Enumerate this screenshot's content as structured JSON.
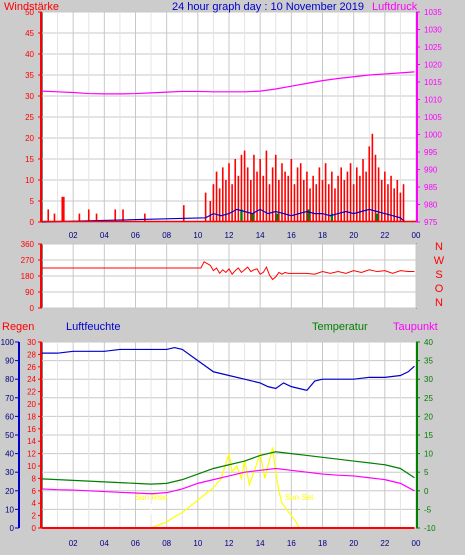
{
  "colors": {
    "background": "#cccccc",
    "plot_bg": "#ffffff",
    "grid": "#c8c8c8",
    "wind": "#ff0000",
    "gust_low": "#0000cc",
    "gust_green": "#008000",
    "pressure": "#ff00ff",
    "direction": "#ff0000",
    "rain": "#ff0000",
    "humidity": "#0000cc",
    "temperature": "#008000",
    "dewpoint": "#ff00ff",
    "sun": "#ffff00"
  },
  "chart_data": [
    {
      "type": "bar",
      "title": "24 hour graph day : 10 November 2019",
      "ylabel_left": "Windstärke",
      "ylabel_right": "Luftdruck",
      "xticks": [
        "02",
        "04",
        "06",
        "08",
        "10",
        "12",
        "14",
        "16",
        "18",
        "20",
        "22",
        "00"
      ],
      "x_range": [
        0,
        24
      ],
      "ylim_left": [
        0,
        50
      ],
      "yticks_left": [
        0,
        5,
        10,
        15,
        20,
        25,
        30,
        35,
        40,
        45,
        50
      ],
      "ylim_right": [
        975,
        1035
      ],
      "yticks_right": [
        975,
        980,
        985,
        990,
        995,
        1000,
        1005,
        1010,
        1015,
        1020,
        1025,
        1030,
        1035
      ],
      "wind_bars": [
        {
          "t": 0.4,
          "v": 3
        },
        {
          "t": 0.8,
          "v": 2
        },
        {
          "t": 1.3,
          "v": 6
        },
        {
          "t": 1.4,
          "v": 6
        },
        {
          "t": 2.4,
          "v": 2
        },
        {
          "t": 3.0,
          "v": 3
        },
        {
          "t": 3.5,
          "v": 2
        },
        {
          "t": 4.7,
          "v": 3
        },
        {
          "t": 5.2,
          "v": 3
        },
        {
          "t": 6.6,
          "v": 2
        },
        {
          "t": 9.1,
          "v": 4
        },
        {
          "t": 10.5,
          "v": 7
        },
        {
          "t": 10.8,
          "v": 5
        },
        {
          "t": 11.0,
          "v": 9
        },
        {
          "t": 11.2,
          "v": 12
        },
        {
          "t": 11.4,
          "v": 8
        },
        {
          "t": 11.6,
          "v": 13
        },
        {
          "t": 11.8,
          "v": 10
        },
        {
          "t": 12.0,
          "v": 14
        },
        {
          "t": 12.2,
          "v": 9
        },
        {
          "t": 12.4,
          "v": 15
        },
        {
          "t": 12.6,
          "v": 11
        },
        {
          "t": 12.8,
          "v": 16
        },
        {
          "t": 13.0,
          "v": 17
        },
        {
          "t": 13.2,
          "v": 13
        },
        {
          "t": 13.4,
          "v": 10
        },
        {
          "t": 13.6,
          "v": 16
        },
        {
          "t": 13.8,
          "v": 12
        },
        {
          "t": 14.0,
          "v": 15
        },
        {
          "t": 14.2,
          "v": 11
        },
        {
          "t": 14.4,
          "v": 17
        },
        {
          "t": 14.6,
          "v": 9
        },
        {
          "t": 14.8,
          "v": 13
        },
        {
          "t": 15.0,
          "v": 16
        },
        {
          "t": 15.2,
          "v": 10
        },
        {
          "t": 15.4,
          "v": 14
        },
        {
          "t": 15.6,
          "v": 12
        },
        {
          "t": 15.8,
          "v": 11
        },
        {
          "t": 16.0,
          "v": 15
        },
        {
          "t": 16.2,
          "v": 9
        },
        {
          "t": 16.4,
          "v": 13
        },
        {
          "t": 16.6,
          "v": 14
        },
        {
          "t": 16.8,
          "v": 10
        },
        {
          "t": 17.0,
          "v": 12
        },
        {
          "t": 17.2,
          "v": 8
        },
        {
          "t": 17.4,
          "v": 11
        },
        {
          "t": 17.6,
          "v": 9
        },
        {
          "t": 17.8,
          "v": 13
        },
        {
          "t": 18.0,
          "v": 10
        },
        {
          "t": 18.2,
          "v": 14
        },
        {
          "t": 18.4,
          "v": 9
        },
        {
          "t": 18.6,
          "v": 12
        },
        {
          "t": 18.8,
          "v": 8
        },
        {
          "t": 19.0,
          "v": 11
        },
        {
          "t": 19.2,
          "v": 13
        },
        {
          "t": 19.4,
          "v": 10
        },
        {
          "t": 19.6,
          "v": 12
        },
        {
          "t": 19.8,
          "v": 14
        },
        {
          "t": 20.0,
          "v": 9
        },
        {
          "t": 20.2,
          "v": 13
        },
        {
          "t": 20.4,
          "v": 11
        },
        {
          "t": 20.6,
          "v": 15
        },
        {
          "t": 20.8,
          "v": 12
        },
        {
          "t": 21.0,
          "v": 18
        },
        {
          "t": 21.2,
          "v": 21
        },
        {
          "t": 21.4,
          "v": 16
        },
        {
          "t": 21.6,
          "v": 13
        },
        {
          "t": 21.8,
          "v": 10
        },
        {
          "t": 22.0,
          "v": 12
        },
        {
          "t": 22.2,
          "v": 9
        },
        {
          "t": 22.4,
          "v": 11
        },
        {
          "t": 22.6,
          "v": 8
        },
        {
          "t": 22.8,
          "v": 10
        },
        {
          "t": 23.0,
          "v": 7
        },
        {
          "t": 23.2,
          "v": 9
        }
      ],
      "gust_series": {
        "t": [
          0,
          10.5,
          11,
          11.5,
          12,
          12.5,
          13,
          13.5,
          14,
          14.5,
          15,
          15.5,
          16,
          16.5,
          17,
          17.5,
          18,
          18.5,
          19,
          19.5,
          20,
          20.5,
          21,
          21.5,
          22,
          22.5,
          23,
          23.3
        ],
        "v": [
          0,
          1,
          2,
          1.5,
          2,
          3,
          2.5,
          2,
          3,
          2,
          2.5,
          2,
          1.5,
          2,
          2.5,
          2,
          2,
          1.5,
          2,
          2.5,
          2,
          2.5,
          3,
          2.5,
          2,
          1.5,
          1,
          0
        ]
      },
      "green_bars": [
        {
          "t": 12.8,
          "v": 3
        },
        {
          "t": 13.5,
          "v": 2
        },
        {
          "t": 15.1,
          "v": 2
        },
        {
          "t": 17.1,
          "v": 3
        },
        {
          "t": 18.6,
          "v": 2
        },
        {
          "t": 21.5,
          "v": 2
        }
      ],
      "pressure": {
        "t": [
          0,
          1,
          2,
          3,
          4,
          5,
          6,
          7,
          8,
          9,
          10,
          11,
          12,
          13,
          14,
          15,
          16,
          17,
          18,
          19,
          20,
          21,
          22,
          23,
          23.9
        ],
        "v": [
          1012.4,
          1012.2,
          1012.0,
          1011.7,
          1011.6,
          1011.6,
          1011.7,
          1011.9,
          1012.1,
          1012.3,
          1012.3,
          1012.2,
          1012.2,
          1012.2,
          1012.4,
          1013.0,
          1013.8,
          1014.6,
          1015.4,
          1016.0,
          1016.5,
          1017.0,
          1017.3,
          1017.6,
          1017.9
        ]
      }
    },
    {
      "type": "line",
      "ylabel_right_letters": [
        "N",
        "W",
        "S",
        "O",
        "N"
      ],
      "ylim": [
        0,
        360
      ],
      "yticks": [
        0,
        90,
        180,
        270,
        360
      ],
      "x_range": [
        0,
        24
      ],
      "direction": {
        "t": [
          0,
          10.2,
          10.4,
          10.6,
          10.8,
          11.0,
          11.2,
          11.4,
          11.6,
          11.8,
          12.0,
          12.2,
          12.4,
          12.6,
          12.8,
          13.0,
          13.2,
          13.4,
          13.6,
          13.8,
          14.0,
          14.2,
          14.4,
          14.6,
          14.8,
          15.0,
          15.2,
          15.4,
          15.6,
          15.8,
          16.0,
          16.5,
          17.0,
          17.5,
          18.0,
          18.5,
          19.0,
          19.5,
          20.0,
          20.5,
          21.0,
          21.5,
          22.0,
          22.5,
          23.0,
          23.5,
          23.9
        ],
        "v": [
          225,
          225,
          260,
          250,
          240,
          210,
          225,
          195,
          215,
          200,
          220,
          190,
          210,
          225,
          200,
          215,
          230,
          205,
          215,
          220,
          190,
          200,
          230,
          185,
          160,
          175,
          200,
          190,
          200,
          195,
          195,
          195,
          195,
          190,
          205,
          195,
          205,
          195,
          210,
          200,
          215,
          205,
          210,
          195,
          210,
          205,
          205
        ]
      }
    },
    {
      "type": "line",
      "ylabel_rain": "Regen",
      "ylabel_humidity": "Luftfeuchte",
      "ylabel_temperature": "Temperatur",
      "ylabel_dewpoint": "Taupunkt",
      "sun_rise_label": "Sun Rise",
      "sun_set_label": "Sun Set",
      "sun_rise_t": 7.0,
      "sun_set_t": 16.5,
      "xticks": [
        "02",
        "04",
        "06",
        "08",
        "10",
        "12",
        "14",
        "16",
        "18",
        "20",
        "22",
        "00"
      ],
      "x_range": [
        0,
        24
      ],
      "humidity_axis": {
        "lim": [
          0,
          100
        ],
        "ticks": [
          0,
          10,
          20,
          30,
          40,
          50,
          60,
          70,
          80,
          90,
          100
        ]
      },
      "rain_axis": {
        "lim": [
          0,
          30
        ],
        "ticks": [
          0,
          2,
          4,
          6,
          8,
          10,
          12,
          14,
          16,
          18,
          20,
          22,
          24,
          26,
          28,
          30
        ]
      },
      "temp_axis": {
        "lim": [
          -10,
          40
        ],
        "ticks": [
          -10,
          -5,
          0,
          5,
          10,
          15,
          20,
          25,
          30,
          35,
          40
        ]
      },
      "humidity": {
        "t": [
          0,
          1,
          2,
          3,
          4,
          5,
          6,
          7,
          8,
          8.5,
          9,
          10,
          11,
          12,
          13,
          14,
          14.5,
          15,
          15.5,
          16,
          16.5,
          17,
          17.5,
          18,
          19,
          20,
          21,
          22,
          23,
          23.5,
          23.9
        ],
        "v": [
          94,
          94,
          95,
          95,
          95,
          96,
          96,
          96,
          96,
          97,
          96,
          90,
          84,
          82,
          80,
          78,
          76,
          75,
          78,
          76,
          75,
          74,
          79,
          80,
          80,
          80,
          81,
          81,
          82,
          84,
          87
        ]
      },
      "temperature": {
        "t": [
          0,
          1,
          2,
          3,
          4,
          5,
          6,
          7,
          8,
          9,
          10,
          11,
          12,
          13,
          14,
          15,
          16,
          17,
          18,
          19,
          20,
          21,
          22,
          23,
          23.9
        ],
        "v": [
          3.2,
          3.0,
          2.8,
          2.6,
          2.4,
          2.2,
          2.0,
          1.8,
          2.0,
          3.0,
          4.5,
          6.0,
          7.0,
          8.0,
          9.5,
          10.5,
          10.0,
          9.5,
          9.0,
          8.5,
          8.0,
          7.5,
          7.0,
          6.0,
          3.5
        ]
      },
      "dewpoint": {
        "t": [
          0,
          1,
          2,
          3,
          4,
          5,
          6,
          7,
          8,
          9,
          10,
          11,
          12,
          13,
          14,
          15,
          16,
          17,
          18,
          19,
          20,
          21,
          22,
          23,
          23.9
        ],
        "v": [
          0.5,
          0.3,
          0.2,
          0.0,
          -0.2,
          -0.4,
          -0.6,
          -0.8,
          -0.5,
          0.5,
          2.0,
          3.0,
          4.0,
          5.0,
          5.5,
          6.0,
          5.5,
          5.0,
          4.5,
          4.2,
          4.0,
          3.5,
          3.0,
          2.0,
          0.0
        ]
      },
      "sun": {
        "t": [
          7.0,
          7.5,
          8,
          8.5,
          9,
          9.5,
          10,
          10.5,
          11,
          11.5,
          12,
          12.2,
          12.5,
          12.8,
          13,
          13.3,
          13.6,
          14,
          14.3,
          14.6,
          14.8,
          15,
          15.2,
          15.4,
          15.7,
          16,
          16.3,
          16.5
        ],
        "v": [
          0,
          0.5,
          1.0,
          1.8,
          2.5,
          3.5,
          4.5,
          5.5,
          6.5,
          8,
          12,
          9,
          10,
          8,
          11,
          7,
          9,
          12,
          8,
          11,
          13,
          9,
          6,
          4,
          3,
          2,
          1,
          0
        ]
      },
      "rain": {
        "t": [
          0,
          23.9
        ],
        "v": [
          0,
          0
        ]
      }
    }
  ]
}
